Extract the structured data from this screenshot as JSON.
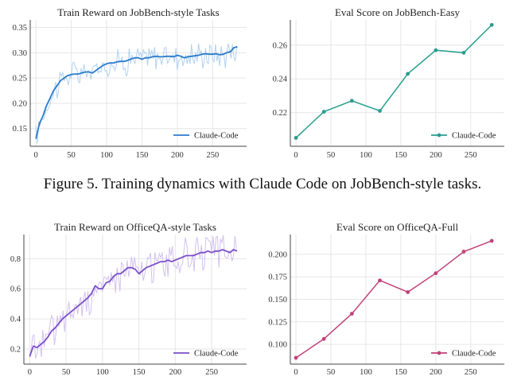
{
  "caption": "Figure 5. Training dynamics with Claude Code on JobBench-style tasks.",
  "chart_data": [
    {
      "id": "train-jobbench",
      "type": "line",
      "title": "Train Reward on JobBench-style Tasks",
      "xlabel": "",
      "ylabel": "",
      "xlim": [
        -8,
        298
      ],
      "ylim": [
        0.115,
        0.365
      ],
      "xticks": [
        0,
        50,
        100,
        150,
        200,
        250
      ],
      "yticks": [
        0.15,
        0.2,
        0.25,
        0.3,
        0.35
      ],
      "ytick_labels": [
        "0.15",
        "0.20",
        "0.25",
        "0.30",
        "0.35"
      ],
      "grid": true,
      "legend_position": "bottom-right",
      "series": [
        {
          "name": "Claude-Code",
          "color": "#2b7bcb",
          "raw_color": "#a9cdf0",
          "noise": 0.022,
          "smoothed": [
            [
              0,
              0.13
            ],
            [
              5,
              0.16
            ],
            [
              10,
              0.175
            ],
            [
              15,
              0.195
            ],
            [
              20,
              0.21
            ],
            [
              25,
              0.225
            ],
            [
              30,
              0.235
            ],
            [
              35,
              0.245
            ],
            [
              40,
              0.25
            ],
            [
              45,
              0.255
            ],
            [
              50,
              0.257
            ],
            [
              55,
              0.258
            ],
            [
              60,
              0.258
            ],
            [
              65,
              0.26
            ],
            [
              70,
              0.262
            ],
            [
              75,
              0.262
            ],
            [
              80,
              0.26
            ],
            [
              85,
              0.265
            ],
            [
              90,
              0.27
            ],
            [
              95,
              0.275
            ],
            [
              100,
              0.278
            ],
            [
              105,
              0.28
            ],
            [
              110,
              0.28
            ],
            [
              115,
              0.282
            ],
            [
              120,
              0.283
            ],
            [
              125,
              0.283
            ],
            [
              130,
              0.285
            ],
            [
              135,
              0.288
            ],
            [
              140,
              0.29
            ],
            [
              145,
              0.29
            ],
            [
              150,
              0.287
            ],
            [
              155,
              0.29
            ],
            [
              160,
              0.29
            ],
            [
              165,
              0.292
            ],
            [
              170,
              0.293
            ],
            [
              175,
              0.292
            ],
            [
              180,
              0.292
            ],
            [
              185,
              0.293
            ],
            [
              190,
              0.293
            ],
            [
              195,
              0.292
            ],
            [
              200,
              0.295
            ],
            [
              205,
              0.293
            ],
            [
              210,
              0.29
            ],
            [
              215,
              0.292
            ],
            [
              220,
              0.293
            ],
            [
              225,
              0.294
            ],
            [
              230,
              0.295
            ],
            [
              235,
              0.297
            ],
            [
              240,
              0.298
            ],
            [
              245,
              0.297
            ],
            [
              250,
              0.297
            ],
            [
              255,
              0.298
            ],
            [
              260,
              0.296
            ],
            [
              265,
              0.297
            ],
            [
              270,
              0.3
            ],
            [
              275,
              0.302
            ],
            [
              280,
              0.31
            ],
            [
              285,
              0.312
            ]
          ]
        }
      ]
    },
    {
      "id": "eval-jobbench-easy",
      "type": "line",
      "title": "Eval Score on JobBench-Easy",
      "xlabel": "",
      "ylabel": "",
      "xlim": [
        -8,
        298
      ],
      "ylim": [
        0.2,
        0.275
      ],
      "xticks": [
        0,
        50,
        100,
        150,
        200,
        250
      ],
      "yticks": [
        0.22,
        0.24,
        0.26
      ],
      "ytick_labels": [
        "0.22",
        "0.24",
        "0.26"
      ],
      "grid": true,
      "legend_position": "bottom-right",
      "series": [
        {
          "name": "Claude-Code",
          "color": "#2a9d8f",
          "markers": true,
          "points": [
            [
              0,
              0.205
            ],
            [
              40,
              0.2205
            ],
            [
              80,
              0.227
            ],
            [
              120,
              0.221
            ],
            [
              160,
              0.243
            ],
            [
              200,
              0.257
            ],
            [
              240,
              0.2555
            ],
            [
              280,
              0.272
            ]
          ]
        }
      ]
    },
    {
      "id": "train-officeqa",
      "type": "line",
      "title": "Train Reward on OfficeQA-style Tasks",
      "xlabel": "",
      "ylabel": "",
      "xlim": [
        -8,
        298
      ],
      "ylim": [
        0.1,
        0.96
      ],
      "xticks": [
        0,
        50,
        100,
        150,
        200,
        250
      ],
      "yticks": [
        0.2,
        0.4,
        0.6,
        0.8
      ],
      "ytick_labels": [
        "0.2",
        "0.4",
        "0.6",
        "0.8"
      ],
      "grid": true,
      "legend_position": "bottom-right",
      "series": [
        {
          "name": "Claude-Code",
          "color": "#7b4fc7",
          "raw_color": "#cdbaf0",
          "noise": 0.09,
          "smoothed": [
            [
              0,
              0.15
            ],
            [
              5,
              0.22
            ],
            [
              10,
              0.21
            ],
            [
              15,
              0.23
            ],
            [
              20,
              0.25
            ],
            [
              25,
              0.28
            ],
            [
              30,
              0.32
            ],
            [
              35,
              0.34
            ],
            [
              40,
              0.37
            ],
            [
              45,
              0.4
            ],
            [
              50,
              0.42
            ],
            [
              55,
              0.44
            ],
            [
              60,
              0.46
            ],
            [
              65,
              0.48
            ],
            [
              70,
              0.5
            ],
            [
              75,
              0.52
            ],
            [
              80,
              0.54
            ],
            [
              85,
              0.57
            ],
            [
              90,
              0.62
            ],
            [
              95,
              0.6
            ],
            [
              100,
              0.6
            ],
            [
              105,
              0.64
            ],
            [
              110,
              0.65
            ],
            [
              115,
              0.68
            ],
            [
              120,
              0.7
            ],
            [
              125,
              0.7
            ],
            [
              130,
              0.72
            ],
            [
              135,
              0.74
            ],
            [
              140,
              0.74
            ],
            [
              145,
              0.73
            ],
            [
              150,
              0.7
            ],
            [
              155,
              0.72
            ],
            [
              160,
              0.74
            ],
            [
              165,
              0.75
            ],
            [
              170,
              0.76
            ],
            [
              175,
              0.77
            ],
            [
              180,
              0.78
            ],
            [
              185,
              0.78
            ],
            [
              190,
              0.79
            ],
            [
              195,
              0.78
            ],
            [
              200,
              0.79
            ],
            [
              205,
              0.8
            ],
            [
              210,
              0.81
            ],
            [
              215,
              0.82
            ],
            [
              220,
              0.82
            ],
            [
              225,
              0.82
            ],
            [
              230,
              0.83
            ],
            [
              235,
              0.84
            ],
            [
              240,
              0.84
            ],
            [
              245,
              0.85
            ],
            [
              250,
              0.84
            ],
            [
              255,
              0.85
            ],
            [
              260,
              0.85
            ],
            [
              265,
              0.86
            ],
            [
              270,
              0.85
            ],
            [
              275,
              0.84
            ],
            [
              280,
              0.86
            ],
            [
              285,
              0.85
            ]
          ]
        }
      ]
    },
    {
      "id": "eval-officeqa-full",
      "type": "line",
      "title": "Eval Score on OfficeQA-Full",
      "xlabel": "",
      "ylabel": "",
      "xlim": [
        -8,
        298
      ],
      "ylim": [
        0.078,
        0.222
      ],
      "xticks": [
        0,
        50,
        100,
        150,
        200,
        250
      ],
      "yticks": [
        0.1,
        0.125,
        0.15,
        0.175,
        0.2
      ],
      "ytick_labels": [
        "0.100",
        "0.125",
        "0.150",
        "0.175",
        "0.200"
      ],
      "grid": true,
      "legend_position": "bottom-right",
      "series": [
        {
          "name": "Claude-Code",
          "color": "#c2417a",
          "markers": true,
          "points": [
            [
              0,
              0.085
            ],
            [
              40,
              0.106
            ],
            [
              80,
              0.134
            ],
            [
              120,
              0.171
            ],
            [
              160,
              0.158
            ],
            [
              200,
              0.179
            ],
            [
              240,
              0.203
            ],
            [
              280,
              0.215
            ]
          ]
        }
      ]
    }
  ]
}
